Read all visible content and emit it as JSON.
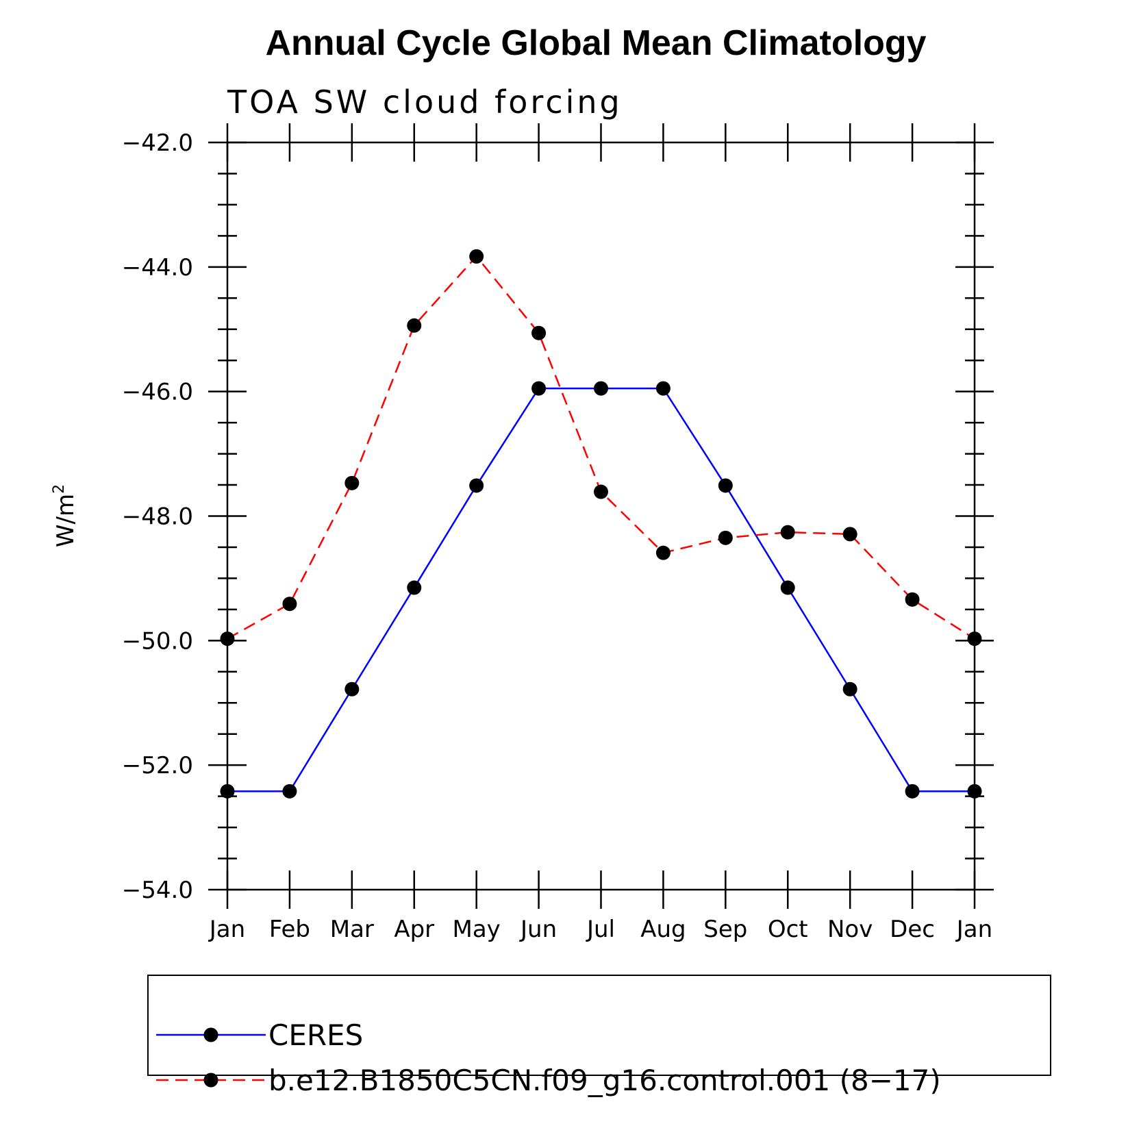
{
  "chart_data": {
    "type": "line",
    "title": "Annual Cycle Global Mean Climatology",
    "subtitle": "TOA SW cloud forcing",
    "xlabel": "",
    "ylabel": "W/m",
    "ylabel_superscript": "2",
    "categories": [
      "Jan",
      "Feb",
      "Mar",
      "Apr",
      "May",
      "Jun",
      "Jul",
      "Aug",
      "Sep",
      "Oct",
      "Nov",
      "Dec",
      "Jan"
    ],
    "ylim": [
      -54.0,
      -42.0
    ],
    "yticks": [
      -42.0,
      -44.0,
      -46.0,
      -48.0,
      -50.0,
      -52.0,
      -54.0
    ],
    "ytick_labels": [
      "−42.0",
      "−44.0",
      "−46.0",
      "−48.0",
      "−50.0",
      "−52.0",
      "−54.0"
    ],
    "grid": false,
    "legend_position": "bottom",
    "series": [
      {
        "name": "CERES",
        "color": "#0000ff",
        "style": "solid",
        "marker": "circle",
        "values": [
          -52.42,
          -52.42,
          -50.78,
          -49.15,
          -47.51,
          -45.95,
          -45.95,
          -45.95,
          -47.51,
          -49.15,
          -50.78,
          -52.42,
          -52.42
        ]
      },
      {
        "name": "b.e12.B1850C5CN.f09_g16.control.001 (8−17)",
        "color": "#ff0000",
        "style": "dashed",
        "marker": "circle",
        "values": [
          -49.97,
          -49.41,
          -47.47,
          -44.94,
          -43.83,
          -45.06,
          -47.61,
          -48.59,
          -48.35,
          -48.26,
          -48.29,
          -49.34,
          -49.97
        ]
      }
    ]
  }
}
